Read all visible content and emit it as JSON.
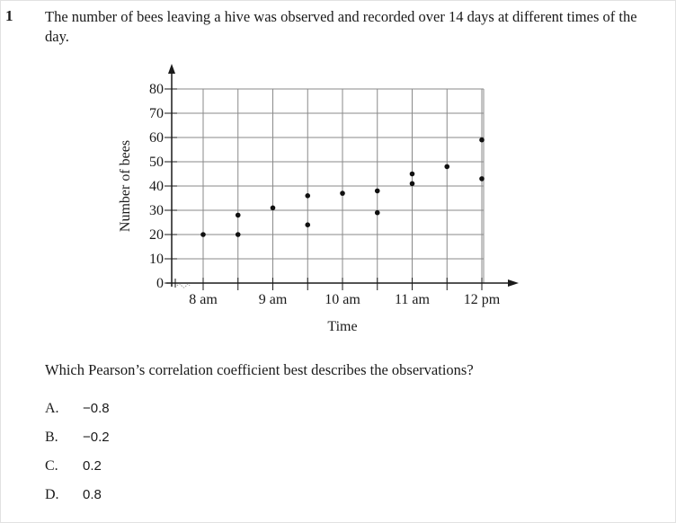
{
  "question": {
    "number": "1",
    "stem": "The number of bees leaving a hive was observed and recorded over 14 days at different times of the day.",
    "prompt": "Which Pearson’s correlation coefficient best describes the observations?",
    "options": [
      {
        "letter": "A.",
        "value": "−0.8"
      },
      {
        "letter": "B.",
        "value": "−0.2"
      },
      {
        "letter": "C.",
        "value": "0.2"
      },
      {
        "letter": "D.",
        "value": "0.8"
      }
    ]
  },
  "chart_data": {
    "type": "scatter",
    "title": "",
    "xlabel": "Time",
    "ylabel": "Number of bees",
    "x_ticks": [
      "8 am",
      "9 am",
      "10 am",
      "11 am",
      "12 pm"
    ],
    "y_ticks": [
      0,
      10,
      20,
      30,
      40,
      50,
      60,
      70,
      80
    ],
    "ylim": [
      0,
      80
    ],
    "grid": true,
    "axis_break": true,
    "points": [
      {
        "x": "8 am",
        "y": 20
      },
      {
        "x": "8:30 am",
        "y": 28
      },
      {
        "x": "8:30 am",
        "y": 20
      },
      {
        "x": "9 am",
        "y": 31
      },
      {
        "x": "9:30 am",
        "y": 36
      },
      {
        "x": "9:30 am",
        "y": 24
      },
      {
        "x": "10 am",
        "y": 37
      },
      {
        "x": "10:30 am",
        "y": 38
      },
      {
        "x": "10:30 am",
        "y": 29
      },
      {
        "x": "11 am",
        "y": 45
      },
      {
        "x": "11 am",
        "y": 41
      },
      {
        "x": "11:30 am",
        "y": 48
      },
      {
        "x": "12 pm",
        "y": 59
      },
      {
        "x": "12 pm",
        "y": 43
      }
    ]
  }
}
